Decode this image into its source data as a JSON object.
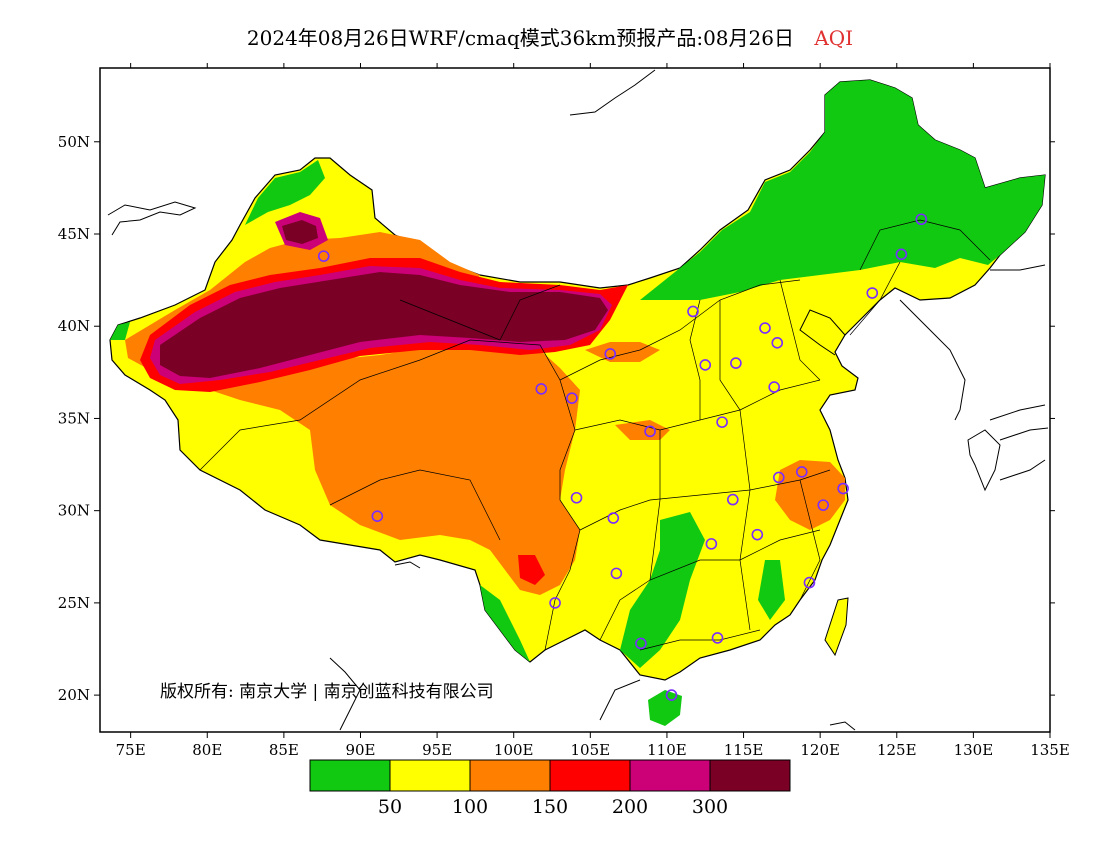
{
  "title": {
    "main": "2024年08月26日WRF/cmaq模式36km预报产品:08月26日",
    "variable": "AQI",
    "variable_color": "#e03030"
  },
  "map": {
    "lon_range": [
      73,
      135
    ],
    "lat_range": [
      18,
      54
    ],
    "lon_ticks": [
      "75E",
      "80E",
      "85E",
      "90E",
      "95E",
      "100E",
      "105E",
      "110E",
      "115E",
      "120E",
      "125E",
      "130E",
      "135E"
    ],
    "lat_ticks": [
      "20N",
      "25N",
      "30N",
      "35N",
      "40N",
      "45N",
      "50N"
    ],
    "copyright": "版权所有: 南京大学 | 南京创蓝科技有限公司"
  },
  "legend": {
    "colors": [
      "#12c912",
      "#ffff00",
      "#ff7f00",
      "#ff0000",
      "#cc0077",
      "#7a0026"
    ],
    "thresholds": [
      "50",
      "100",
      "150",
      "200",
      "300"
    ]
  },
  "stations": [
    [
      87.6,
      43.8
    ],
    [
      91.1,
      29.7
    ],
    [
      101.8,
      36.6
    ],
    [
      103.8,
      36.1
    ],
    [
      106.3,
      38.5
    ],
    [
      102.7,
      25.0
    ],
    [
      104.1,
      30.7
    ],
    [
      106.5,
      29.6
    ],
    [
      106.7,
      26.6
    ],
    [
      108.9,
      34.3
    ],
    [
      111.7,
      40.8
    ],
    [
      112.5,
      37.9
    ],
    [
      114.5,
      38.0
    ],
    [
      113.6,
      34.8
    ],
    [
      112.9,
      28.2
    ],
    [
      114.3,
      30.6
    ],
    [
      115.9,
      28.7
    ],
    [
      117.3,
      31.8
    ],
    [
      117.0,
      36.7
    ],
    [
      116.4,
      39.9
    ],
    [
      117.2,
      39.1
    ],
    [
      118.8,
      32.1
    ],
    [
      120.2,
      30.3
    ],
    [
      121.5,
      31.2
    ],
    [
      119.3,
      26.1
    ],
    [
      113.3,
      23.1
    ],
    [
      108.3,
      22.8
    ],
    [
      110.3,
      20.0
    ],
    [
      123.4,
      41.8
    ],
    [
      125.3,
      43.9
    ],
    [
      126.6,
      45.8
    ]
  ]
}
